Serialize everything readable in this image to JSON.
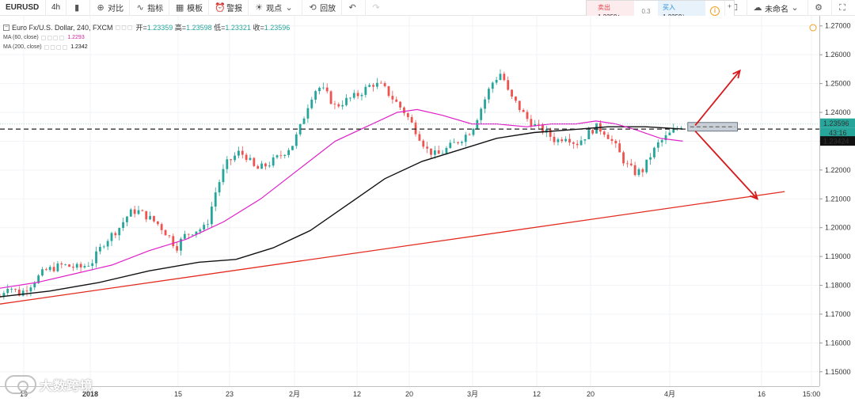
{
  "toolbar": {
    "symbol": "EURUSD",
    "interval": "4h",
    "compare_label": "对比",
    "indicators_label": "指标",
    "templates_label": "模板",
    "alert_label": "警报",
    "ideas_label": "观点",
    "replay_label": "回放",
    "layout_name": "未命名"
  },
  "trade": {
    "sell_label": "卖出",
    "sell_price": "1.2359⁴",
    "spread": "0.3",
    "buy_label": "买入",
    "buy_price": "1.2359⁷",
    "info_icon": "i",
    "plus": "+",
    "minus": "−"
  },
  "legend": {
    "title": "Euro Fx/U.S. Dollar, 240, FXCM",
    "open_label": "开=",
    "open": "1.23359",
    "high_label": "高=",
    "high": "1.23598",
    "low_label": "低=",
    "low": "1.23321",
    "close_label": "收=",
    "close": "1.23596",
    "ma60_label": "MA (60, close)",
    "ma60_value": "1.2293",
    "ma200_label": "MA (200, close)",
    "ma200_value": "1.2342"
  },
  "price_axis": {
    "ticks": [
      "1.27000",
      "1.26000",
      "1.25000",
      "1.24000",
      "1.23000",
      "1.22000",
      "1.21000",
      "1.20000",
      "1.19000",
      "1.18000",
      "1.17000",
      "1.16000",
      "1.15000"
    ],
    "last_price": "1.23596",
    "countdown": "43:16",
    "ma_price": "1.23424"
  },
  "time_axis": {
    "ticks": [
      "19",
      "2018",
      "15",
      "23",
      "2月",
      "12",
      "20",
      "3月",
      "12",
      "20",
      "4月",
      "16",
      "15:00"
    ]
  },
  "colors": {
    "up": "#26a69a",
    "down": "#ef5350",
    "ma60": "#e020c8",
    "ma200": "#111111",
    "trendline": "#e32b1e",
    "arrow": "#d7191c",
    "last_price_bg": "#26a69a",
    "ma_price_bg": "#111111"
  },
  "watermark": "大数跨境",
  "chart_data": {
    "type": "candlestick",
    "title": "Euro Fx/U.S. Dollar, 240, FXCM",
    "ylim": [
      1.145,
      1.2735
    ],
    "y_ticks": [
      1.15,
      1.16,
      1.17,
      1.18,
      1.19,
      1.2,
      1.21,
      1.22,
      1.23,
      1.24,
      1.25,
      1.26,
      1.27
    ],
    "x_ticks": [
      "19",
      "2018",
      "15",
      "23",
      "2月",
      "12",
      "20",
      "3月",
      "12",
      "20",
      "4月",
      "16",
      "15:00"
    ],
    "price_path": [
      [
        0,
        1.176
      ],
      [
        3,
        1.18
      ],
      [
        8,
        1.177
      ],
      [
        12,
        1.18
      ],
      [
        18,
        1.185
      ],
      [
        25,
        1.187
      ],
      [
        32,
        1.186
      ],
      [
        37,
        1.188
      ],
      [
        42,
        1.195
      ],
      [
        48,
        1.2
      ],
      [
        52,
        1.205
      ],
      [
        55,
        1.206
      ],
      [
        59,
        1.204
      ],
      [
        64,
        1.201
      ],
      [
        68,
        1.197
      ],
      [
        71,
        1.193
      ],
      [
        74,
        1.197
      ],
      [
        78,
        1.199
      ],
      [
        83,
        1.2
      ],
      [
        87,
        1.213
      ],
      [
        91,
        1.222
      ],
      [
        96,
        1.226
      ],
      [
        99,
        1.225
      ],
      [
        103,
        1.22
      ],
      [
        108,
        1.222
      ],
      [
        113,
        1.225
      ],
      [
        118,
        1.229
      ],
      [
        121,
        1.235
      ],
      [
        125,
        1.245
      ],
      [
        128,
        1.249
      ],
      [
        131,
        1.247
      ],
      [
        135,
        1.242
      ],
      [
        139,
        1.244
      ],
      [
        144,
        1.246
      ],
      [
        150,
        1.25
      ],
      [
        154,
        1.249
      ],
      [
        158,
        1.245
      ],
      [
        163,
        1.24
      ],
      [
        168,
        1.233
      ],
      [
        172,
        1.227
      ],
      [
        176,
        1.225
      ],
      [
        181,
        1.228
      ],
      [
        186,
        1.231
      ],
      [
        190,
        1.234
      ],
      [
        194,
        1.242
      ],
      [
        198,
        1.25
      ],
      [
        202,
        1.254
      ],
      [
        205,
        1.246
      ],
      [
        208,
        1.243
      ],
      [
        212,
        1.238
      ],
      [
        216,
        1.235
      ],
      [
        220,
        1.233
      ],
      [
        224,
        1.23
      ],
      [
        228,
        1.232
      ],
      [
        232,
        1.229
      ],
      [
        236,
        1.232
      ],
      [
        240,
        1.235
      ],
      [
        244,
        1.233
      ],
      [
        248,
        1.228
      ],
      [
        252,
        1.222
      ],
      [
        256,
        1.219
      ],
      [
        259,
        1.22
      ],
      [
        262,
        1.225
      ],
      [
        265,
        1.229
      ],
      [
        269,
        1.232
      ],
      [
        272,
        1.234
      ],
      [
        275,
        1.236
      ]
    ],
    "ma60_path": [
      [
        0,
        1.179
      ],
      [
        15,
        1.181
      ],
      [
        30,
        1.184
      ],
      [
        45,
        1.187
      ],
      [
        60,
        1.192
      ],
      [
        75,
        1.196
      ],
      [
        90,
        1.202
      ],
      [
        105,
        1.21
      ],
      [
        120,
        1.22
      ],
      [
        135,
        1.23
      ],
      [
        150,
        1.236
      ],
      [
        160,
        1.24
      ],
      [
        168,
        1.241
      ],
      [
        178,
        1.239
      ],
      [
        190,
        1.236
      ],
      [
        200,
        1.236
      ],
      [
        212,
        1.235
      ],
      [
        222,
        1.236
      ],
      [
        232,
        1.236
      ],
      [
        240,
        1.237
      ],
      [
        248,
        1.236
      ],
      [
        256,
        1.234
      ],
      [
        266,
        1.231
      ],
      [
        275,
        1.23
      ]
    ],
    "ma200_path": [
      [
        0,
        1.176
      ],
      [
        20,
        1.178
      ],
      [
        40,
        1.181
      ],
      [
        60,
        1.185
      ],
      [
        80,
        1.188
      ],
      [
        95,
        1.189
      ],
      [
        110,
        1.193
      ],
      [
        125,
        1.199
      ],
      [
        140,
        1.208
      ],
      [
        155,
        1.217
      ],
      [
        170,
        1.223
      ],
      [
        185,
        1.227
      ],
      [
        200,
        1.231
      ],
      [
        215,
        1.233
      ],
      [
        230,
        1.234
      ],
      [
        245,
        1.235
      ],
      [
        260,
        1.235
      ],
      [
        275,
        1.2342
      ]
    ],
    "horizontal_level": 1.2342,
    "trendline": {
      "from": [
        0,
        1.1735
      ],
      "to": [
        316,
        1.2125
      ]
    },
    "zone": {
      "x_from": 277,
      "x_to": 297,
      "low": 1.2335,
      "high": 1.2365
    },
    "arrows": [
      {
        "from": [
          280,
          1.2355
        ],
        "to": [
          298,
          1.2545
        ],
        "dir": "up"
      },
      {
        "from": [
          280,
          1.2335
        ],
        "to": [
          305,
          1.21
        ],
        "dir": "down"
      }
    ],
    "grid": true,
    "ma60_value": 1.2293,
    "ma200_value": 1.2342,
    "last_price": 1.23596
  }
}
